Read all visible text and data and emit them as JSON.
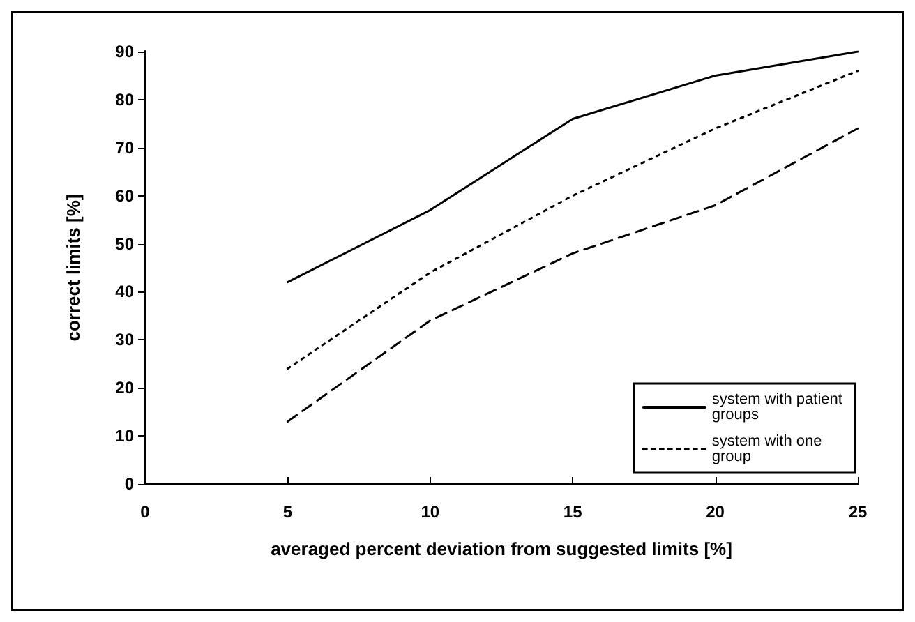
{
  "chart_data": {
    "type": "line",
    "xlabel": "averaged percent deviation from suggested limits [%]",
    "ylabel": "correct limits [%]",
    "x": [
      5,
      10,
      15,
      20,
      25
    ],
    "xlim": [
      0,
      25
    ],
    "xticks": [
      0,
      5,
      10,
      15,
      20,
      25
    ],
    "ylim": [
      0,
      90
    ],
    "yticks": [
      0,
      10,
      20,
      30,
      40,
      50,
      60,
      70,
      80,
      90
    ],
    "grid": false,
    "legend": "bottom right",
    "marker": "none",
    "series": [
      {
        "name": "system with patient groups",
        "color": "#000000",
        "line_style": "solid",
        "values": [
          42,
          57,
          76,
          85,
          90
        ]
      },
      {
        "name": "system with one group",
        "color": "#000000",
        "line_style": "dotted",
        "values": [
          24,
          44,
          60,
          74,
          86
        ]
      },
      {
        "color": "#000000",
        "line_style": "dashed",
        "values": [
          13,
          34,
          48,
          58,
          74
        ]
      }
    ]
  }
}
